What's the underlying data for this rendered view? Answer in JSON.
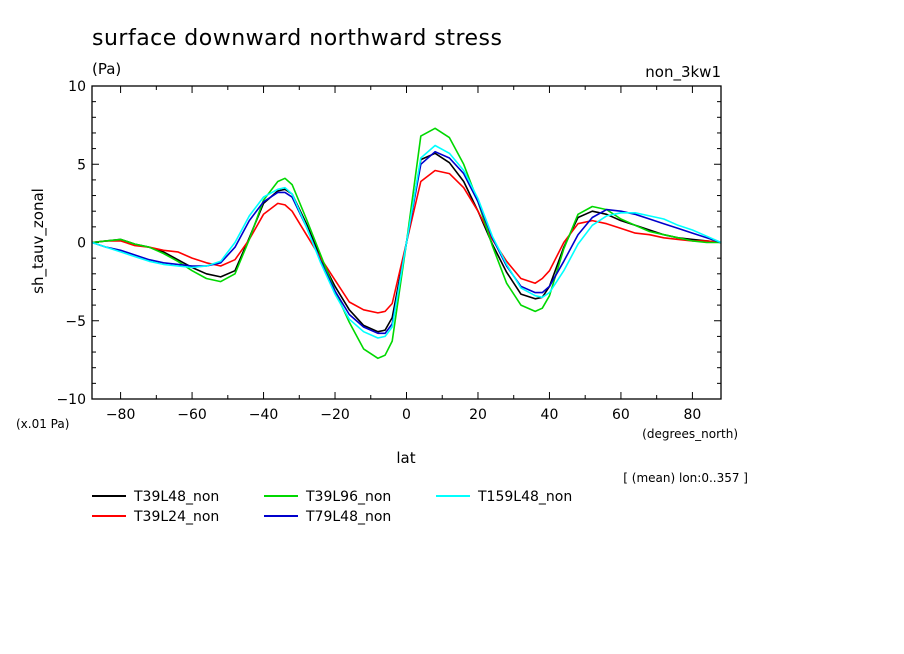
{
  "chart_data": {
    "type": "line",
    "title": "surface downward northward stress",
    "units": "(Pa)",
    "experiment": "non_3kw1",
    "ylabel": "sh_tauv_zonal",
    "yscale_note": "(x.01 Pa)",
    "xlabel": "lat",
    "xunits": "(degrees_north)",
    "averaging_note": "[ (mean) lon:0..357 ]",
    "xlim": [
      -88,
      88
    ],
    "ylim": [
      -10,
      10
    ],
    "xticks": [
      -80,
      -60,
      -40,
      -20,
      0,
      20,
      40,
      60,
      80
    ],
    "xtick_labels": [
      "−80",
      "−60",
      "−40",
      "−20",
      "0",
      "20",
      "40",
      "60",
      "80"
    ],
    "yticks": [
      -10,
      -5,
      0,
      5,
      10
    ],
    "ytick_labels": [
      "−10",
      "−5",
      "0",
      "5",
      "10"
    ],
    "grid": false,
    "legend_position": "bottom",
    "series": [
      {
        "name": "T39L48_non",
        "color": "#000000",
        "x": [
          -88,
          -84,
          -80,
          -76,
          -72,
          -68,
          -64,
          -60,
          -56,
          -52,
          -48,
          -44,
          -40,
          -36,
          -34,
          -32,
          -28,
          -24,
          -20,
          -16,
          -12,
          -8,
          -6,
          -4,
          0,
          4,
          8,
          12,
          16,
          20,
          24,
          28,
          32,
          36,
          38,
          40,
          44,
          48,
          52,
          56,
          60,
          64,
          68,
          72,
          76,
          80,
          84,
          88
        ],
        "y": [
          0,
          0.1,
          0.2,
          -0.1,
          -0.3,
          -0.6,
          -1.1,
          -1.6,
          -2.0,
          -2.2,
          -1.8,
          0.3,
          2.5,
          3.3,
          3.4,
          3.1,
          1.2,
          -1.0,
          -2.8,
          -4.3,
          -5.3,
          -5.7,
          -5.6,
          -4.8,
          0,
          5.3,
          5.7,
          5.1,
          3.9,
          2.0,
          -0.1,
          -1.9,
          -3.3,
          -3.6,
          -3.5,
          -2.8,
          -0.3,
          1.6,
          2.0,
          1.8,
          1.4,
          1.1,
          0.8,
          0.5,
          0.3,
          0.2,
          0.1,
          0
        ]
      },
      {
        "name": "T39L24_non",
        "color": "#ff0000",
        "x": [
          -88,
          -84,
          -80,
          -76,
          -72,
          -68,
          -64,
          -60,
          -56,
          -52,
          -48,
          -44,
          -40,
          -36,
          -34,
          -32,
          -28,
          -24,
          -20,
          -16,
          -12,
          -8,
          -6,
          -4,
          0,
          4,
          8,
          12,
          16,
          20,
          24,
          28,
          32,
          36,
          38,
          40,
          44,
          48,
          52,
          56,
          60,
          64,
          68,
          72,
          76,
          80,
          84,
          88
        ],
        "y": [
          0,
          0.1,
          0.1,
          -0.2,
          -0.3,
          -0.5,
          -0.6,
          -1.0,
          -1.3,
          -1.5,
          -1.1,
          0.2,
          1.8,
          2.5,
          2.4,
          2.0,
          0.5,
          -1.0,
          -2.4,
          -3.8,
          -4.3,
          -4.5,
          -4.4,
          -3.9,
          0,
          3.9,
          4.6,
          4.4,
          3.5,
          2.0,
          0.2,
          -1.2,
          -2.3,
          -2.6,
          -2.3,
          -1.8,
          0,
          1.2,
          1.4,
          1.2,
          0.9,
          0.6,
          0.5,
          0.3,
          0.2,
          0.1,
          0.1,
          0
        ]
      },
      {
        "name": "T39L96_non",
        "color": "#00d800",
        "x": [
          -88,
          -84,
          -80,
          -76,
          -72,
          -68,
          -64,
          -60,
          -56,
          -52,
          -48,
          -44,
          -40,
          -36,
          -34,
          -32,
          -28,
          -24,
          -20,
          -16,
          -12,
          -8,
          -6,
          -4,
          0,
          4,
          8,
          12,
          16,
          20,
          24,
          28,
          32,
          36,
          38,
          40,
          44,
          48,
          52,
          56,
          60,
          64,
          68,
          72,
          76,
          80,
          84,
          88
        ],
        "y": [
          0,
          0.1,
          0.2,
          -0.1,
          -0.3,
          -0.7,
          -1.2,
          -1.8,
          -2.3,
          -2.5,
          -2.0,
          0.2,
          2.7,
          3.9,
          4.1,
          3.7,
          1.5,
          -0.8,
          -3.1,
          -5.1,
          -6.8,
          -7.4,
          -7.2,
          -6.3,
          0,
          6.8,
          7.3,
          6.7,
          5.0,
          2.6,
          -0.2,
          -2.6,
          -4.0,
          -4.4,
          -4.2,
          -3.4,
          -0.4,
          1.8,
          2.3,
          2.1,
          1.5,
          1.1,
          0.7,
          0.5,
          0.3,
          0.1,
          0,
          0
        ]
      },
      {
        "name": "T79L48_non",
        "color": "#0000cc",
        "x": [
          -88,
          -84,
          -80,
          -76,
          -72,
          -68,
          -64,
          -60,
          -56,
          -52,
          -48,
          -44,
          -40,
          -36,
          -34,
          -32,
          -28,
          -24,
          -20,
          -16,
          -12,
          -8,
          -6,
          -4,
          0,
          4,
          8,
          12,
          16,
          20,
          24,
          28,
          32,
          36,
          38,
          40,
          44,
          48,
          52,
          56,
          60,
          64,
          68,
          72,
          76,
          80,
          84,
          88
        ],
        "y": [
          0,
          -0.3,
          -0.5,
          -0.8,
          -1.1,
          -1.3,
          -1.4,
          -1.5,
          -1.5,
          -1.3,
          -0.3,
          1.4,
          2.6,
          3.2,
          3.2,
          2.9,
          1.0,
          -1.2,
          -3.1,
          -4.6,
          -5.4,
          -5.8,
          -5.8,
          -5.2,
          0,
          5.0,
          5.8,
          5.4,
          4.4,
          2.6,
          0.3,
          -1.5,
          -2.8,
          -3.2,
          -3.2,
          -2.8,
          -1.2,
          0.5,
          1.6,
          2.1,
          2.0,
          1.8,
          1.5,
          1.2,
          0.9,
          0.6,
          0.3,
          0
        ]
      },
      {
        "name": "T159L48_non",
        "color": "#00ffff",
        "x": [
          -88,
          -84,
          -80,
          -76,
          -72,
          -68,
          -64,
          -60,
          -56,
          -52,
          -48,
          -44,
          -40,
          -36,
          -34,
          -32,
          -28,
          -24,
          -20,
          -16,
          -12,
          -8,
          -6,
          -4,
          0,
          4,
          8,
          12,
          16,
          20,
          24,
          28,
          32,
          36,
          38,
          40,
          44,
          48,
          52,
          56,
          60,
          64,
          68,
          72,
          76,
          80,
          84,
          88
        ],
        "y": [
          0,
          -0.3,
          -0.6,
          -0.9,
          -1.2,
          -1.4,
          -1.5,
          -1.6,
          -1.5,
          -1.2,
          0,
          1.7,
          2.9,
          3.4,
          3.5,
          3.1,
          1.0,
          -1.3,
          -3.3,
          -4.9,
          -5.7,
          -6.1,
          -6.0,
          -5.4,
          0,
          5.4,
          6.2,
          5.7,
          4.6,
          2.8,
          0.4,
          -1.4,
          -2.9,
          -3.4,
          -3.5,
          -3.2,
          -1.8,
          -0.1,
          1.1,
          1.7,
          1.9,
          1.9,
          1.7,
          1.5,
          1.1,
          0.8,
          0.4,
          0
        ]
      }
    ]
  }
}
